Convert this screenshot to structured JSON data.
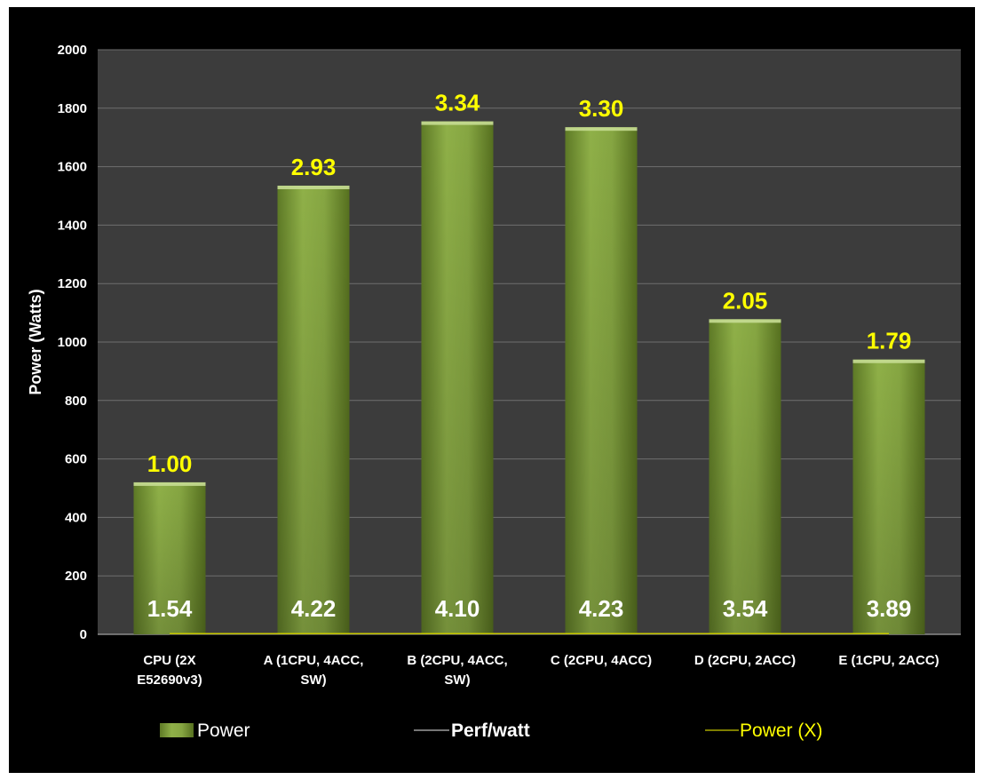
{
  "chart_data": {
    "type": "bar",
    "title": "",
    "ylabel": "Power (Watts)",
    "xlabel": "",
    "ylim": [
      0,
      2000
    ],
    "yticks": [
      0,
      200,
      400,
      600,
      800,
      1000,
      1200,
      1400,
      1600,
      1800,
      2000
    ],
    "grid": true,
    "legend_position": "bottom",
    "categories": [
      [
        "CPU (2X",
        "E52690v3)"
      ],
      [
        "A (1CPU, 4ACC,",
        "SW)"
      ],
      [
        "B (2CPU, 4ACC,",
        "SW)"
      ],
      [
        "C (2CPU, 4ACC)"
      ],
      [
        "D (2CPU, 2ACC)"
      ],
      [
        "E (1CPU, 2ACC)"
      ]
    ],
    "series": [
      {
        "name": "Power",
        "type": "bar",
        "values": [
          520,
          1535,
          1755,
          1735,
          1078,
          940
        ],
        "color": "#7a9a3a"
      },
      {
        "name": "Perf/watt",
        "type": "line",
        "values": [
          1.54,
          4.22,
          4.1,
          4.23,
          3.54,
          3.89
        ],
        "color": "#000000"
      },
      {
        "name": "Power (X)",
        "type": "line",
        "values": [
          1.0,
          2.93,
          3.34,
          3.3,
          2.05,
          1.79
        ],
        "color": "#c8c800"
      }
    ],
    "bar_top_labels": [
      "1.00",
      "2.93",
      "3.34",
      "3.30",
      "2.05",
      "1.79"
    ],
    "bar_inner_labels": [
      "1.54",
      "4.22",
      "4.10",
      "4.23",
      "3.54",
      "3.89"
    ],
    "legend": [
      {
        "label": "Power",
        "marker": "bar"
      },
      {
        "label": "Perf/watt",
        "marker": "line"
      },
      {
        "label": "Power (X)",
        "marker": "line"
      }
    ],
    "colors": {
      "background": "#000000",
      "plot_area": "#3c3c3c",
      "gridline": "#6e6e6e",
      "top_label": "#ffff00",
      "inner_label": "#ffffff",
      "legend_power_x_text": "#ffff00"
    }
  }
}
